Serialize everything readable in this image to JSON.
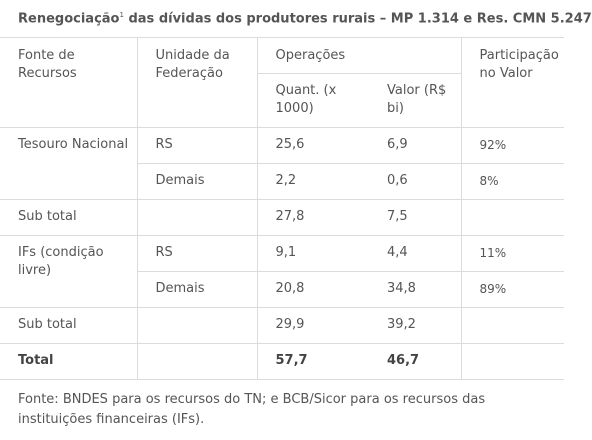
{
  "title": {
    "main": "Renegociação",
    "sup": "1",
    "rest": " das dívidas dos produtores rurais – MP 1.314 e Res. CMN 5.247"
  },
  "header": {
    "fonte": "Fonte de Recursos",
    "uf": "Unidade da Federação",
    "operacoes": "Operações",
    "quant": "Quant. (x 1000)",
    "valor": "Valor (R$ bi)",
    "participacao": "Participação no Valor"
  },
  "rows": {
    "tesouro_rs": {
      "fonte": "Tesouro Nacional",
      "uf": "RS",
      "quant": "25,6",
      "valor": "6,9",
      "part": "92%"
    },
    "tesouro_demais": {
      "uf": "Demais",
      "quant": "2,2",
      "valor": "0,6",
      "part": "8%"
    },
    "subtotal1": {
      "fonte": "Sub total",
      "quant": "27,8",
      "valor": "7,5"
    },
    "ifs_rs": {
      "fonte": "IFs (condição livre)",
      "uf": "RS",
      "quant": "9,1",
      "valor": "4,4",
      "part": "11%"
    },
    "ifs_demais": {
      "uf": "Demais",
      "quant": "20,8",
      "valor": "34,8",
      "part": "89%"
    },
    "subtotal2": {
      "fonte": "Sub total",
      "quant": "29,9",
      "valor": "39,2"
    },
    "total": {
      "fonte": "Total",
      "quant": "57,7",
      "valor": "46,7"
    }
  },
  "footnote": "Fonte: BNDES para os recursos do TN; e BCB/Sicor para os recursos das instituições financeiras (IFs)."
}
